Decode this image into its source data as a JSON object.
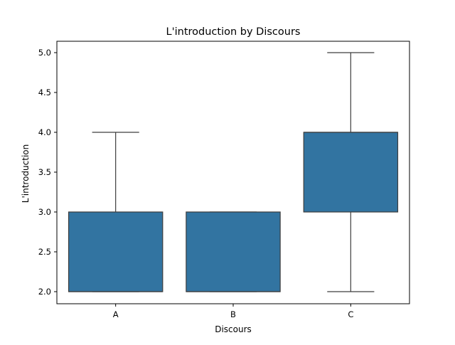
{
  "chart_data": {
    "type": "box",
    "title": "L'introduction by Discours",
    "xlabel": "Discours",
    "ylabel": "L'introduction",
    "categories": [
      "A",
      "B",
      "C"
    ],
    "ylim": [
      1.86,
      5.0
    ],
    "yticks": [
      2.0,
      2.5,
      3.0,
      3.5,
      4.0,
      4.5,
      5.0
    ],
    "ytick_labels": [
      "2.0",
      "2.5",
      "3.0",
      "3.5",
      "4.0",
      "4.5",
      "5.0"
    ],
    "boxes": [
      {
        "category": "A",
        "whisker_low": 2.0,
        "q1": 2.0,
        "median": 2.0,
        "q3": 3.0,
        "whisker_high": 4.0
      },
      {
        "category": "B",
        "whisker_low": 2.0,
        "q1": 2.0,
        "median": 2.0,
        "q3": 3.0,
        "whisker_high": 3.0
      },
      {
        "category": "C",
        "whisker_low": 2.0,
        "q1": 3.0,
        "median": 4.0,
        "q3": 4.0,
        "whisker_high": 5.0
      }
    ],
    "box_color": "#3274a1",
    "line_color": "#3d3d3d",
    "grid": false
  }
}
